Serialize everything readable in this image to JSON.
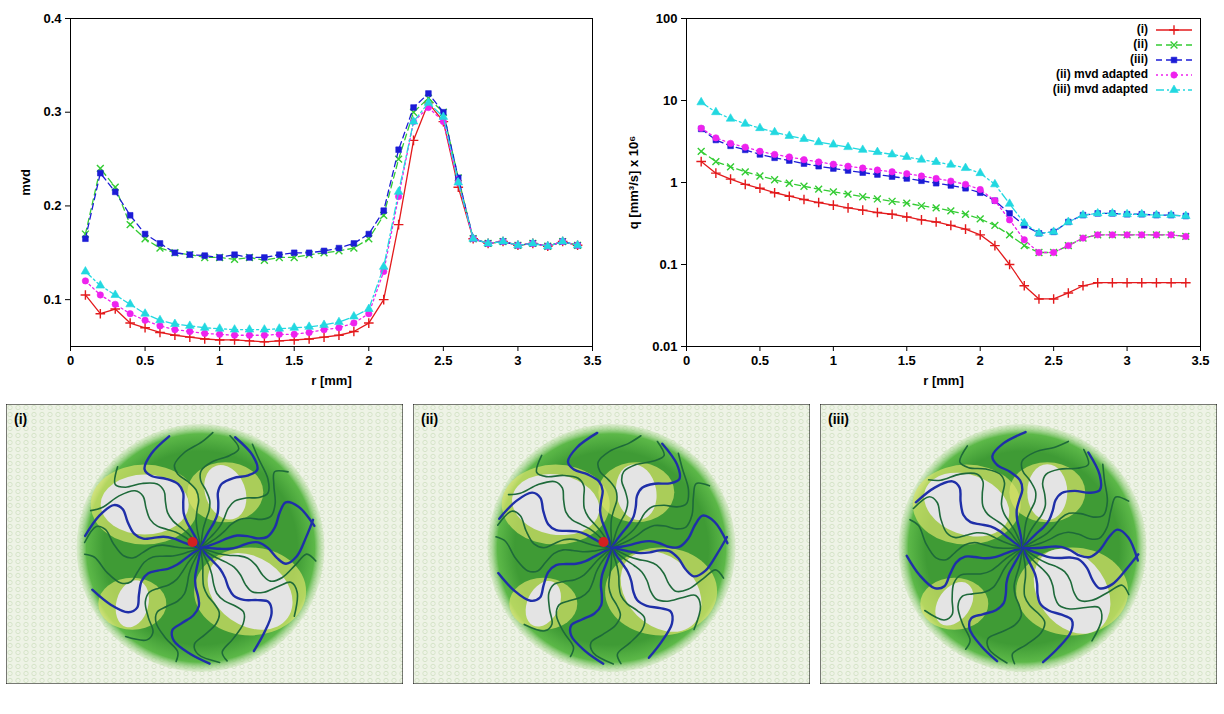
{
  "chart_data": [
    {
      "type": "line",
      "y_label": "mvd",
      "x_label": "r [mm]",
      "xlim": [
        0,
        3.5
      ],
      "xticks": [
        0,
        0.5,
        1,
        1.5,
        2,
        2.5,
        3,
        3.5
      ],
      "ylim": [
        0.05,
        0.4
      ],
      "yticks": [
        0.1,
        0.2,
        0.3,
        0.4
      ],
      "grid": false,
      "legend": false,
      "x": [
        0.1,
        0.2,
        0.3,
        0.4,
        0.5,
        0.6,
        0.7,
        0.8,
        0.9,
        1.0,
        1.1,
        1.2,
        1.3,
        1.4,
        1.5,
        1.6,
        1.7,
        1.8,
        1.9,
        2.0,
        2.1,
        2.2,
        2.3,
        2.4,
        2.5,
        2.6,
        2.7,
        2.8,
        2.9,
        3.0,
        3.1,
        3.2,
        3.3,
        3.4
      ],
      "series": [
        {
          "name": "(i)",
          "color": "#e31a1c",
          "marker": "plus",
          "line_style": "solid",
          "values": [
            0.105,
            0.085,
            0.09,
            0.075,
            0.07,
            0.065,
            0.062,
            0.06,
            0.058,
            0.057,
            0.057,
            0.056,
            0.055,
            0.056,
            0.057,
            0.058,
            0.06,
            0.062,
            0.066,
            0.075,
            0.1,
            0.18,
            0.27,
            0.31,
            0.29,
            0.22,
            0.165,
            0.16,
            0.162,
            0.158,
            0.16,
            0.157,
            0.162,
            0.158
          ]
        },
        {
          "name": "(ii)",
          "color": "#33cc33",
          "marker": "times",
          "line_style": "dashed",
          "values": [
            0.17,
            0.24,
            0.22,
            0.18,
            0.165,
            0.155,
            0.15,
            0.148,
            0.145,
            0.145,
            0.143,
            0.145,
            0.142,
            0.145,
            0.145,
            0.148,
            0.15,
            0.152,
            0.155,
            0.165,
            0.19,
            0.25,
            0.3,
            0.315,
            0.3,
            0.23,
            0.165,
            0.16,
            0.162,
            0.158,
            0.16,
            0.157,
            0.162,
            0.158
          ]
        },
        {
          "name": "(iii)",
          "color": "#1c1cd6",
          "marker": "square",
          "line_style": "dashed",
          "values": [
            0.165,
            0.235,
            0.215,
            0.19,
            0.17,
            0.16,
            0.15,
            0.148,
            0.147,
            0.145,
            0.148,
            0.145,
            0.145,
            0.148,
            0.15,
            0.15,
            0.152,
            0.155,
            0.16,
            0.17,
            0.195,
            0.26,
            0.305,
            0.32,
            0.3,
            0.23,
            0.165,
            0.16,
            0.162,
            0.158,
            0.16,
            0.157,
            0.162,
            0.158
          ]
        },
        {
          "name": "(ii) mvd adapted",
          "color": "#ee22ee",
          "marker": "circle",
          "line_style": "dotted",
          "values": [
            0.12,
            0.105,
            0.095,
            0.085,
            0.078,
            0.072,
            0.068,
            0.066,
            0.064,
            0.063,
            0.062,
            0.062,
            0.062,
            0.063,
            0.063,
            0.065,
            0.068,
            0.07,
            0.075,
            0.085,
            0.13,
            0.21,
            0.29,
            0.305,
            0.29,
            0.225,
            0.165,
            0.16,
            0.162,
            0.158,
            0.16,
            0.157,
            0.162,
            0.158
          ]
        },
        {
          "name": "(iii) mvd adapted",
          "color": "#22d8e0",
          "marker": "triangle",
          "line_style": "dashdot",
          "values": [
            0.13,
            0.115,
            0.105,
            0.095,
            0.085,
            0.078,
            0.074,
            0.072,
            0.07,
            0.069,
            0.068,
            0.068,
            0.068,
            0.069,
            0.07,
            0.071,
            0.073,
            0.076,
            0.082,
            0.09,
            0.135,
            0.215,
            0.29,
            0.31,
            0.295,
            0.225,
            0.165,
            0.16,
            0.162,
            0.158,
            0.16,
            0.157,
            0.162,
            0.158
          ]
        }
      ]
    },
    {
      "type": "line",
      "y_label": "q [mm³/s] x 10⁶",
      "x_label": "r [mm]",
      "log": "y",
      "xlim": [
        0,
        3.5
      ],
      "xticks": [
        0,
        0.5,
        1,
        1.5,
        2,
        2.5,
        3,
        3.5
      ],
      "ylim": [
        0.01,
        100
      ],
      "yticks": [
        0.01,
        0.1,
        1,
        10,
        100
      ],
      "grid": false,
      "legend": "top-right",
      "x": [
        0.1,
        0.2,
        0.3,
        0.4,
        0.5,
        0.6,
        0.7,
        0.8,
        0.9,
        1.0,
        1.1,
        1.2,
        1.3,
        1.4,
        1.5,
        1.6,
        1.7,
        1.8,
        1.9,
        2.0,
        2.1,
        2.2,
        2.3,
        2.4,
        2.5,
        2.6,
        2.7,
        2.8,
        2.9,
        3.0,
        3.1,
        3.2,
        3.3,
        3.4
      ],
      "series": [
        {
          "name": "(i)",
          "color": "#e31a1c",
          "marker": "plus",
          "line_style": "solid",
          "values": [
            1.8,
            1.3,
            1.1,
            0.95,
            0.85,
            0.75,
            0.68,
            0.62,
            0.57,
            0.53,
            0.49,
            0.46,
            0.43,
            0.41,
            0.38,
            0.35,
            0.33,
            0.3,
            0.27,
            0.23,
            0.17,
            0.1,
            0.055,
            0.038,
            0.038,
            0.045,
            0.055,
            0.06,
            0.06,
            0.06,
            0.06,
            0.06,
            0.06,
            0.06
          ]
        },
        {
          "name": "(ii)",
          "color": "#33cc33",
          "marker": "times",
          "line_style": "dashed",
          "values": [
            2.4,
            1.8,
            1.55,
            1.35,
            1.2,
            1.08,
            0.98,
            0.9,
            0.83,
            0.77,
            0.72,
            0.67,
            0.63,
            0.59,
            0.56,
            0.52,
            0.49,
            0.45,
            0.41,
            0.36,
            0.3,
            0.23,
            0.17,
            0.14,
            0.14,
            0.17,
            0.21,
            0.23,
            0.23,
            0.23,
            0.23,
            0.23,
            0.23,
            0.22
          ]
        },
        {
          "name": "(iii)",
          "color": "#1c1cd6",
          "marker": "square",
          "line_style": "dashed",
          "values": [
            4.5,
            3.3,
            2.8,
            2.5,
            2.2,
            2.0,
            1.85,
            1.7,
            1.58,
            1.48,
            1.4,
            1.32,
            1.25,
            1.18,
            1.12,
            1.05,
            0.98,
            0.92,
            0.85,
            0.75,
            0.6,
            0.42,
            0.3,
            0.24,
            0.25,
            0.33,
            0.4,
            0.42,
            0.42,
            0.41,
            0.41,
            0.4,
            0.4,
            0.39
          ]
        },
        {
          "name": "(ii) mvd adapted",
          "color": "#ee22ee",
          "marker": "circle",
          "line_style": "dotted",
          "values": [
            4.6,
            3.5,
            3.0,
            2.7,
            2.4,
            2.2,
            2.05,
            1.9,
            1.78,
            1.67,
            1.58,
            1.5,
            1.42,
            1.35,
            1.28,
            1.2,
            1.12,
            1.04,
            0.95,
            0.82,
            0.6,
            0.35,
            0.2,
            0.14,
            0.14,
            0.17,
            0.21,
            0.23,
            0.23,
            0.23,
            0.23,
            0.23,
            0.23,
            0.22
          ]
        },
        {
          "name": "(iii) mvd adapted",
          "color": "#22d8e0",
          "marker": "triangle",
          "line_style": "dashdot",
          "values": [
            9.5,
            7.2,
            6.0,
            5.2,
            4.6,
            4.1,
            3.7,
            3.4,
            3.1,
            2.9,
            2.7,
            2.5,
            2.35,
            2.2,
            2.05,
            1.9,
            1.78,
            1.65,
            1.5,
            1.3,
            0.95,
            0.55,
            0.32,
            0.24,
            0.25,
            0.33,
            0.4,
            0.42,
            0.42,
            0.41,
            0.41,
            0.4,
            0.4,
            0.39
          ]
        }
      ]
    }
  ],
  "images": {
    "labels": [
      "(i)",
      "(ii)",
      "(iii)"
    ]
  }
}
